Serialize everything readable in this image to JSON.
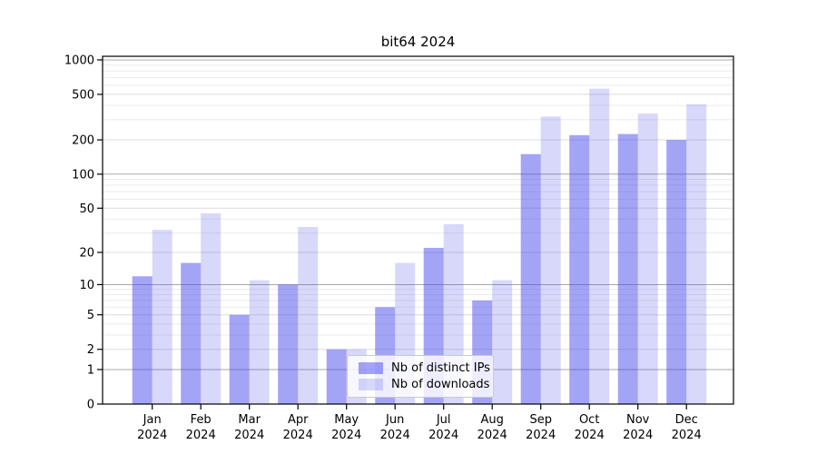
{
  "chart_data": {
    "type": "bar",
    "title": "bit64 2024",
    "categories": [
      "Jan",
      "Feb",
      "Mar",
      "Apr",
      "May",
      "Jun",
      "Jul",
      "Aug",
      "Sep",
      "Oct",
      "Nov",
      "Dec"
    ],
    "category_year": "2024",
    "series": [
      {
        "name": "Nb of distinct IPs",
        "color": "rgba(62,62,235,0.47)",
        "values": [
          12,
          16,
          5,
          10,
          2,
          6,
          22,
          7,
          150,
          220,
          225,
          200
        ]
      },
      {
        "name": "Nb of downloads",
        "color": "rgba(62,62,235,0.20)",
        "values": [
          32,
          45,
          11,
          34,
          2,
          16,
          36,
          11,
          320,
          560,
          340,
          410
        ]
      }
    ],
    "y_axis": {
      "scale": "log1p",
      "ticks": [
        0,
        1,
        2,
        5,
        10,
        20,
        50,
        100,
        200,
        500,
        1000
      ],
      "ylim": [
        0,
        1075
      ]
    },
    "grid": "on",
    "legend_position": "inside-bottom-center",
    "colors": {
      "grid_decade": "#a8a8ac",
      "grid_mid": "#dcdcdf",
      "grid_minor": "#ebebee",
      "spine": "#000000",
      "background": "#ffffff"
    }
  }
}
